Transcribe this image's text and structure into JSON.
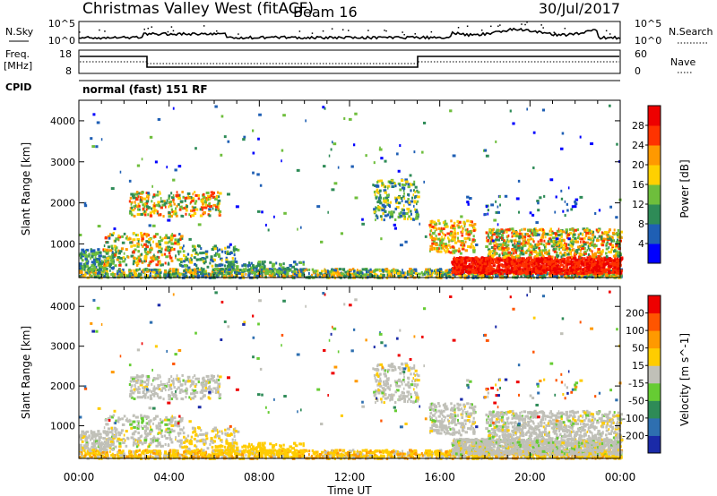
{
  "header": {
    "title": "Christmas Valley West (fitACF)",
    "beam": "Beam 16",
    "date": "30/Jul/2017"
  },
  "top_panels": {
    "nsky_label": "N.Sky",
    "nsky_ticks": [
      "10^5",
      "10^0"
    ],
    "nsky_right_ticks": [
      "10^5",
      "10^0"
    ],
    "nsearch_label": "N.Search",
    "freq_label": "Freq.",
    "freq_unit": "[MHz]",
    "freq_ticks": [
      "18",
      "8"
    ],
    "nave_ticks": [
      "60",
      "0"
    ],
    "nave_label": "Nave",
    "cpid_label": "CPID",
    "cpid_value": "normal (fast) 151 RF"
  },
  "chart_data": [
    {
      "type": "heatmap",
      "ylabel": "Slant Range [km]",
      "ylim": [
        180,
        4500
      ],
      "xlim": [
        0,
        24
      ],
      "yticks": [
        "4000",
        "3000",
        "2000",
        "1000"
      ],
      "colorbar": {
        "label": "Power [dB]",
        "ticks": [
          "28",
          "24",
          "20",
          "16",
          "12",
          "8",
          "4"
        ],
        "colors": [
          "#0000ff",
          "#1f5fb4",
          "#2e8b57",
          "#6ebe3c",
          "#ffd000",
          "#ff9900",
          "#ff3300",
          "#ee0000"
        ]
      }
    },
    {
      "type": "heatmap",
      "ylabel": "Slant Range [km]",
      "ylim": [
        180,
        4500
      ],
      "xlim": [
        0,
        24
      ],
      "yticks": [
        "4000",
        "3000",
        "2000",
        "1000"
      ],
      "colorbar": {
        "label": "Velocity [m s^-1]",
        "ticks": [
          "200",
          "100",
          "50",
          "15",
          "-15",
          "-50",
          "-100",
          "-200"
        ],
        "colors": [
          "#1a2aa8",
          "#2e6fb0",
          "#2e8b57",
          "#66cc33",
          "#c0c0b8",
          "#ffcc00",
          "#ff9900",
          "#ff5500",
          "#ee0000"
        ]
      }
    }
  ],
  "xaxis": {
    "ticks": [
      "00:00",
      "04:00",
      "08:00",
      "12:00",
      "16:00",
      "20:00",
      "00:00"
    ],
    "label": "Time UT"
  }
}
